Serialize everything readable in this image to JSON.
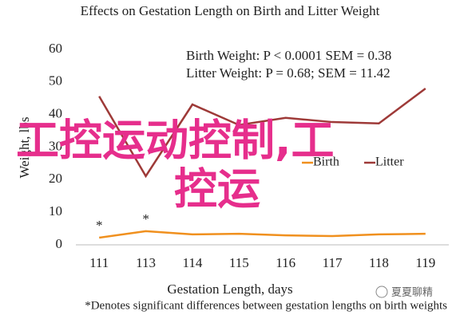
{
  "chart_data": {
    "type": "line",
    "title": "Effects on Gestation Length on Birth and Litter Weight",
    "x_label": "Gestation Length, days",
    "y_label": "Weight, lbs",
    "categories": [
      "111",
      "113",
      "114",
      "115",
      "116",
      "117",
      "118",
      "119"
    ],
    "series": [
      {
        "name": "Birth",
        "color": "#f0901e",
        "values": [
          2.2,
          4.2,
          3.2,
          3.4,
          2.9,
          2.7,
          3.2,
          3.4
        ]
      },
      {
        "name": "Litter",
        "color": "#9e3a38",
        "values": [
          45.6,
          21.1,
          43.1,
          36.8,
          39.0,
          37.7,
          37.3,
          48.0
        ]
      }
    ],
    "ylim": [
      0,
      60
    ],
    "yticks": [
      0,
      10,
      20,
      30,
      40,
      50,
      60
    ],
    "grid": false,
    "annotations": [
      "Birth Weight: P < 0.0001 SEM = 0.38",
      "Litter Weight: P = 0.68; SEM = 11.42"
    ],
    "stars": [
      {
        "at": "111",
        "text": "*"
      },
      {
        "at": "113",
        "text": "*"
      }
    ],
    "footnote": "*Denotes significant differences between gestation lengths on birth weights"
  },
  "watermark": {
    "lines": [
      "工控运动控制,工",
      "控运"
    ],
    "source": "夏夏聊精"
  }
}
